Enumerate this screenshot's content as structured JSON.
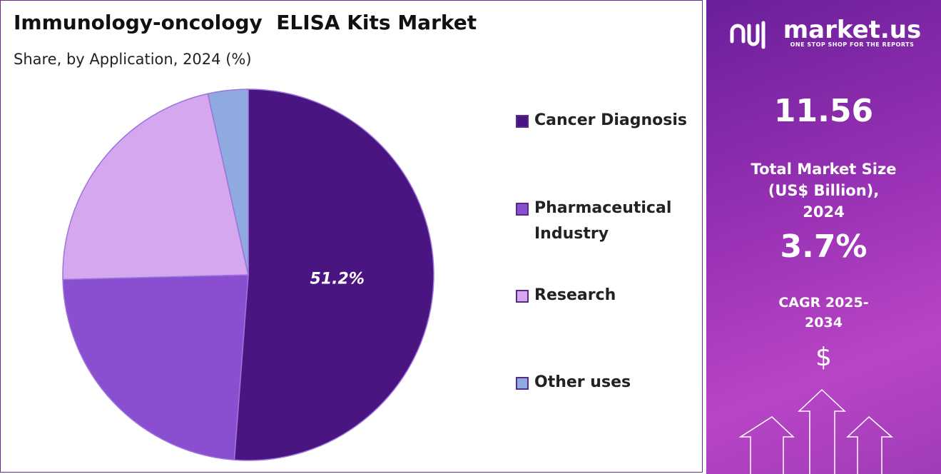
{
  "chart_data": {
    "type": "pie",
    "title": "Immunology-oncology  ELISA Kits Market",
    "subtitle": "Share, by Application, 2024 (%)",
    "categories": [
      "Cancer Diagnosis",
      "Pharmaceutical Industry",
      "Research",
      "Other uses"
    ],
    "values": [
      51.2,
      23.4,
      21.9,
      3.5
    ],
    "value_labels": [
      "51.2%",
      null,
      null,
      null
    ],
    "colors": [
      "#4a1580",
      "#8a4fd0",
      "#d4a7ef",
      "#8eaadf"
    ],
    "legend": "right"
  },
  "panel": {
    "brand": "market.us",
    "tagline": "ONE STOP SHOP FOR THE REPORTS",
    "market_size": "11.56",
    "market_size_label": "Total Market Size (US$ Billion), 2024",
    "cagr": "3.7%",
    "cagr_label": "CAGR 2025-2034",
    "currency_symbol": "$"
  }
}
